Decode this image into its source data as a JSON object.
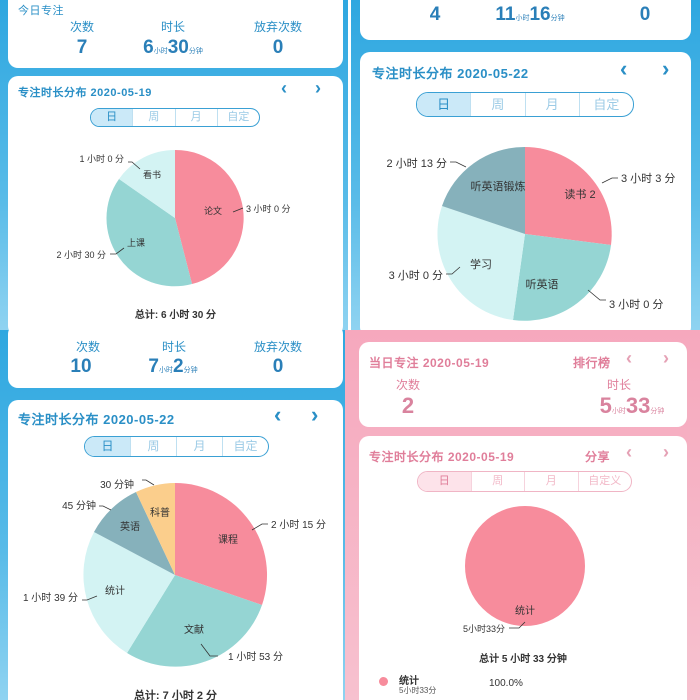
{
  "p1": {
    "stats_title": "今日专注",
    "stats": [
      {
        "label": "次数",
        "value": "7"
      },
      {
        "label": "时长",
        "h": "6",
        "hu": "小时",
        "m": "30",
        "mu": "分钟"
      },
      {
        "label": "放弃次数",
        "value": "0"
      }
    ],
    "dist_title": "专注时长分布 2020-05-19",
    "tabs": [
      "日",
      "周",
      "月",
      "自定"
    ],
    "total": "总计: 6 小时 30 分",
    "slices": [
      {
        "name": "论文",
        "time": "3 小时 0 分",
        "color": "#f78c9c"
      },
      {
        "name": "上课",
        "time": "2 小时 30 分",
        "color": "#95d5d3"
      },
      {
        "name": "看书",
        "time": "1 小时 0 分",
        "color": "#d3f3f3"
      }
    ]
  },
  "p2": {
    "stats": [
      {
        "value": "4"
      },
      {
        "h": "11",
        "hu": "小时",
        "m": "16",
        "mu": "分钟"
      },
      {
        "value": "0"
      }
    ],
    "dist_title": "专注时长分布 2020-05-22",
    "tabs": [
      "日",
      "周",
      "月",
      "自定"
    ],
    "slices": [
      {
        "name": "读书 2",
        "time": "3 小时 3 分",
        "color": "#f78c9c"
      },
      {
        "name": "听英语",
        "time": "3 小时 0 分",
        "color": "#95d5d3"
      },
      {
        "name": "学习",
        "time": "3 小时 0 分",
        "color": "#d3f3f3"
      },
      {
        "name": "听英语锻炼",
        "time": "2 小时 13 分",
        "color": "#86b1bb"
      }
    ]
  },
  "p3": {
    "stats": [
      {
        "label": "次数",
        "value": "10"
      },
      {
        "label": "时长",
        "h": "7",
        "hu": "小时",
        "m": "2",
        "mu": "分钟"
      },
      {
        "label": "放弃次数",
        "value": "0"
      }
    ],
    "dist_title": "专注时长分布 2020-05-22",
    "tabs": [
      "日",
      "周",
      "月",
      "自定"
    ],
    "total": "总计: 7 小时 2 分",
    "slices": [
      {
        "name": "课程",
        "time": "2 小时 15 分",
        "color": "#f78c9c"
      },
      {
        "name": "文献",
        "time": "1 小时 53 分",
        "color": "#95d5d3"
      },
      {
        "name": "统计",
        "time": "1 小时 39 分",
        "color": "#d3f3f3"
      },
      {
        "name": "英语",
        "time": "45 分钟",
        "color": "#86b1bb"
      },
      {
        "name": "科普",
        "time": "30 分钟",
        "color": "#fbce8c"
      }
    ]
  },
  "p4": {
    "stats_title": "当日专注 2020-05-19",
    "rank": "排行榜",
    "stats": [
      {
        "label": "次数",
        "value": "2"
      },
      {
        "label": "时长",
        "h": "5",
        "hu": "小时",
        "m": "33",
        "mu": "分钟"
      }
    ],
    "dist_title": "专注时长分布 2020-05-19",
    "share": "分享",
    "tabs": [
      "日",
      "周",
      "月",
      "自定义"
    ],
    "total": "总计 5 小时 33 分钟",
    "slice": {
      "name": "统计",
      "time": "5小时33分",
      "color": "#f78c9c"
    },
    "legend": {
      "name": "统计",
      "time": "5小时33分",
      "percent": "100.0%"
    }
  },
  "arrows": {
    "prev": "‹",
    "next": "›"
  }
}
